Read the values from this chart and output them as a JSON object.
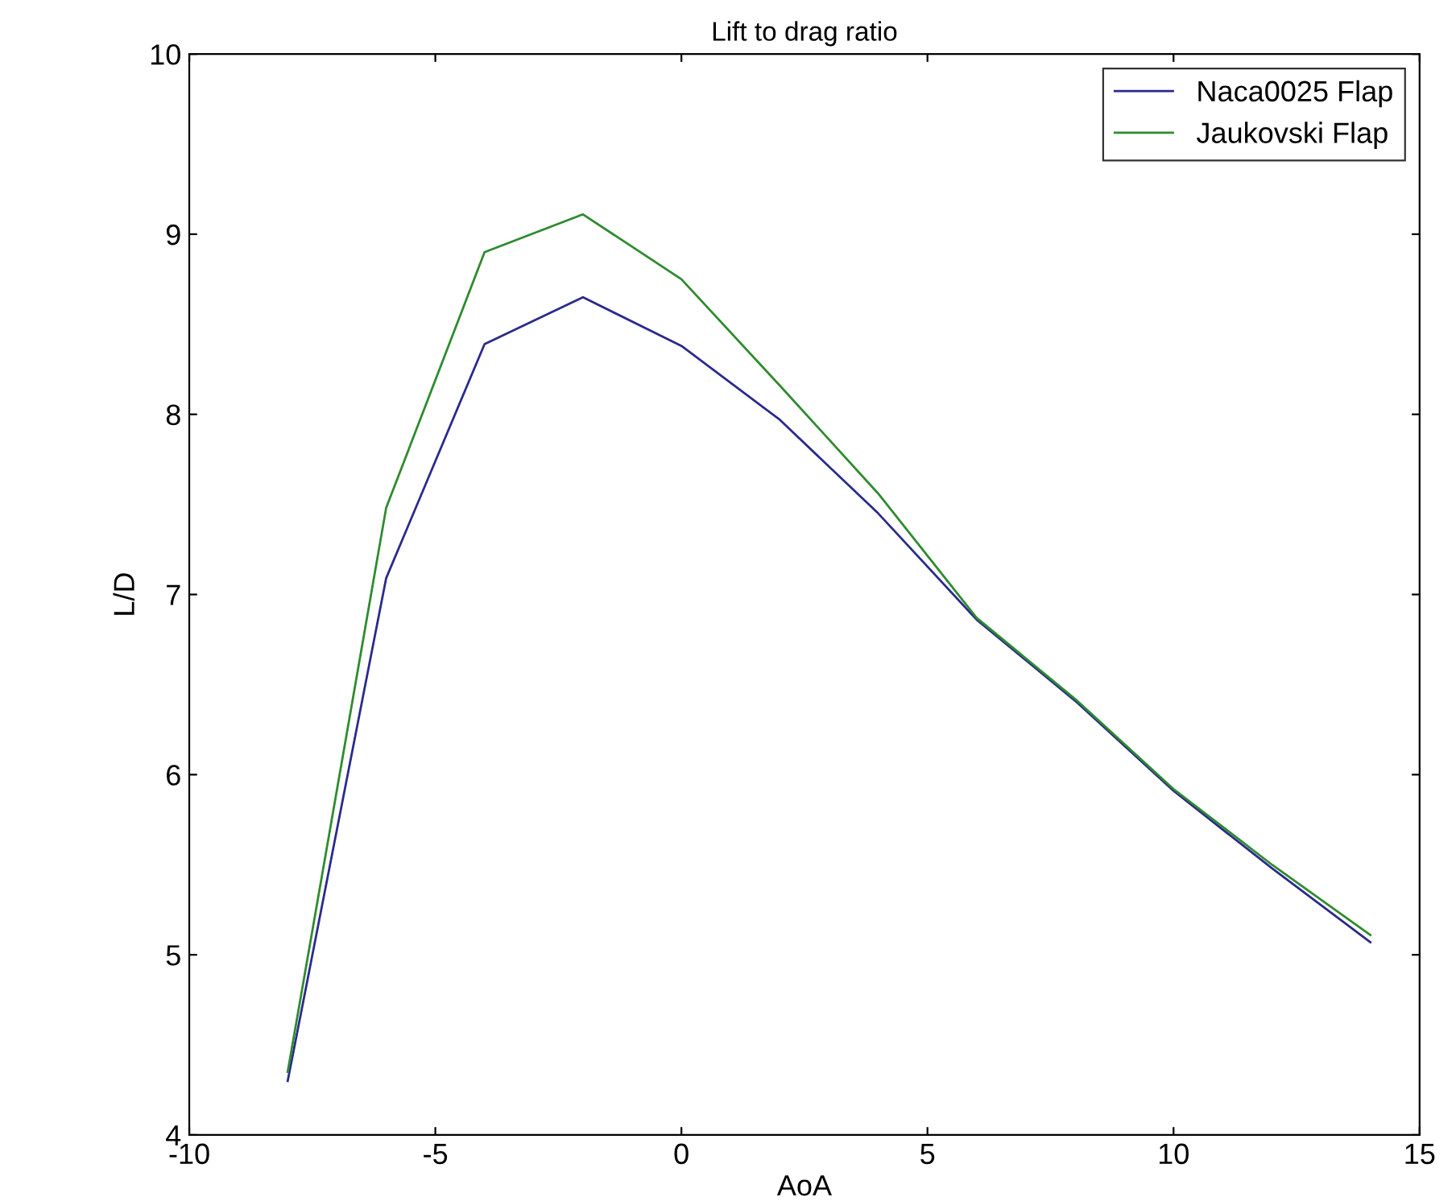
{
  "chart_data": {
    "type": "line",
    "title": "Lift to drag ratio",
    "xlabel": "AoA",
    "ylabel": "L/D",
    "x": [
      -8,
      -6,
      -4,
      -2,
      0,
      2,
      4,
      6,
      8,
      10,
      12,
      14
    ],
    "series": [
      {
        "name": "Naca0025 Flap",
        "color": "#2a2a8c",
        "values": [
          4.3,
          7.09,
          8.39,
          8.65,
          8.38,
          7.97,
          7.45,
          6.86,
          6.41,
          5.91,
          5.48,
          5.07
        ]
      },
      {
        "name": "Jaukovski Flap",
        "color": "#2e8b2e",
        "values": [
          4.35,
          7.48,
          8.9,
          9.11,
          8.75,
          8.16,
          7.56,
          6.87,
          6.42,
          5.92,
          5.5,
          5.11
        ]
      }
    ],
    "xlim": [
      -10,
      15
    ],
    "xticks": [
      -10,
      -5,
      0,
      5,
      10,
      15
    ],
    "ylim": [
      4,
      10
    ],
    "yticks": [
      4,
      5,
      6,
      7,
      8,
      9,
      10
    ],
    "grid": false,
    "legend": "top right",
    "marker": "none",
    "line_style": "solid"
  }
}
